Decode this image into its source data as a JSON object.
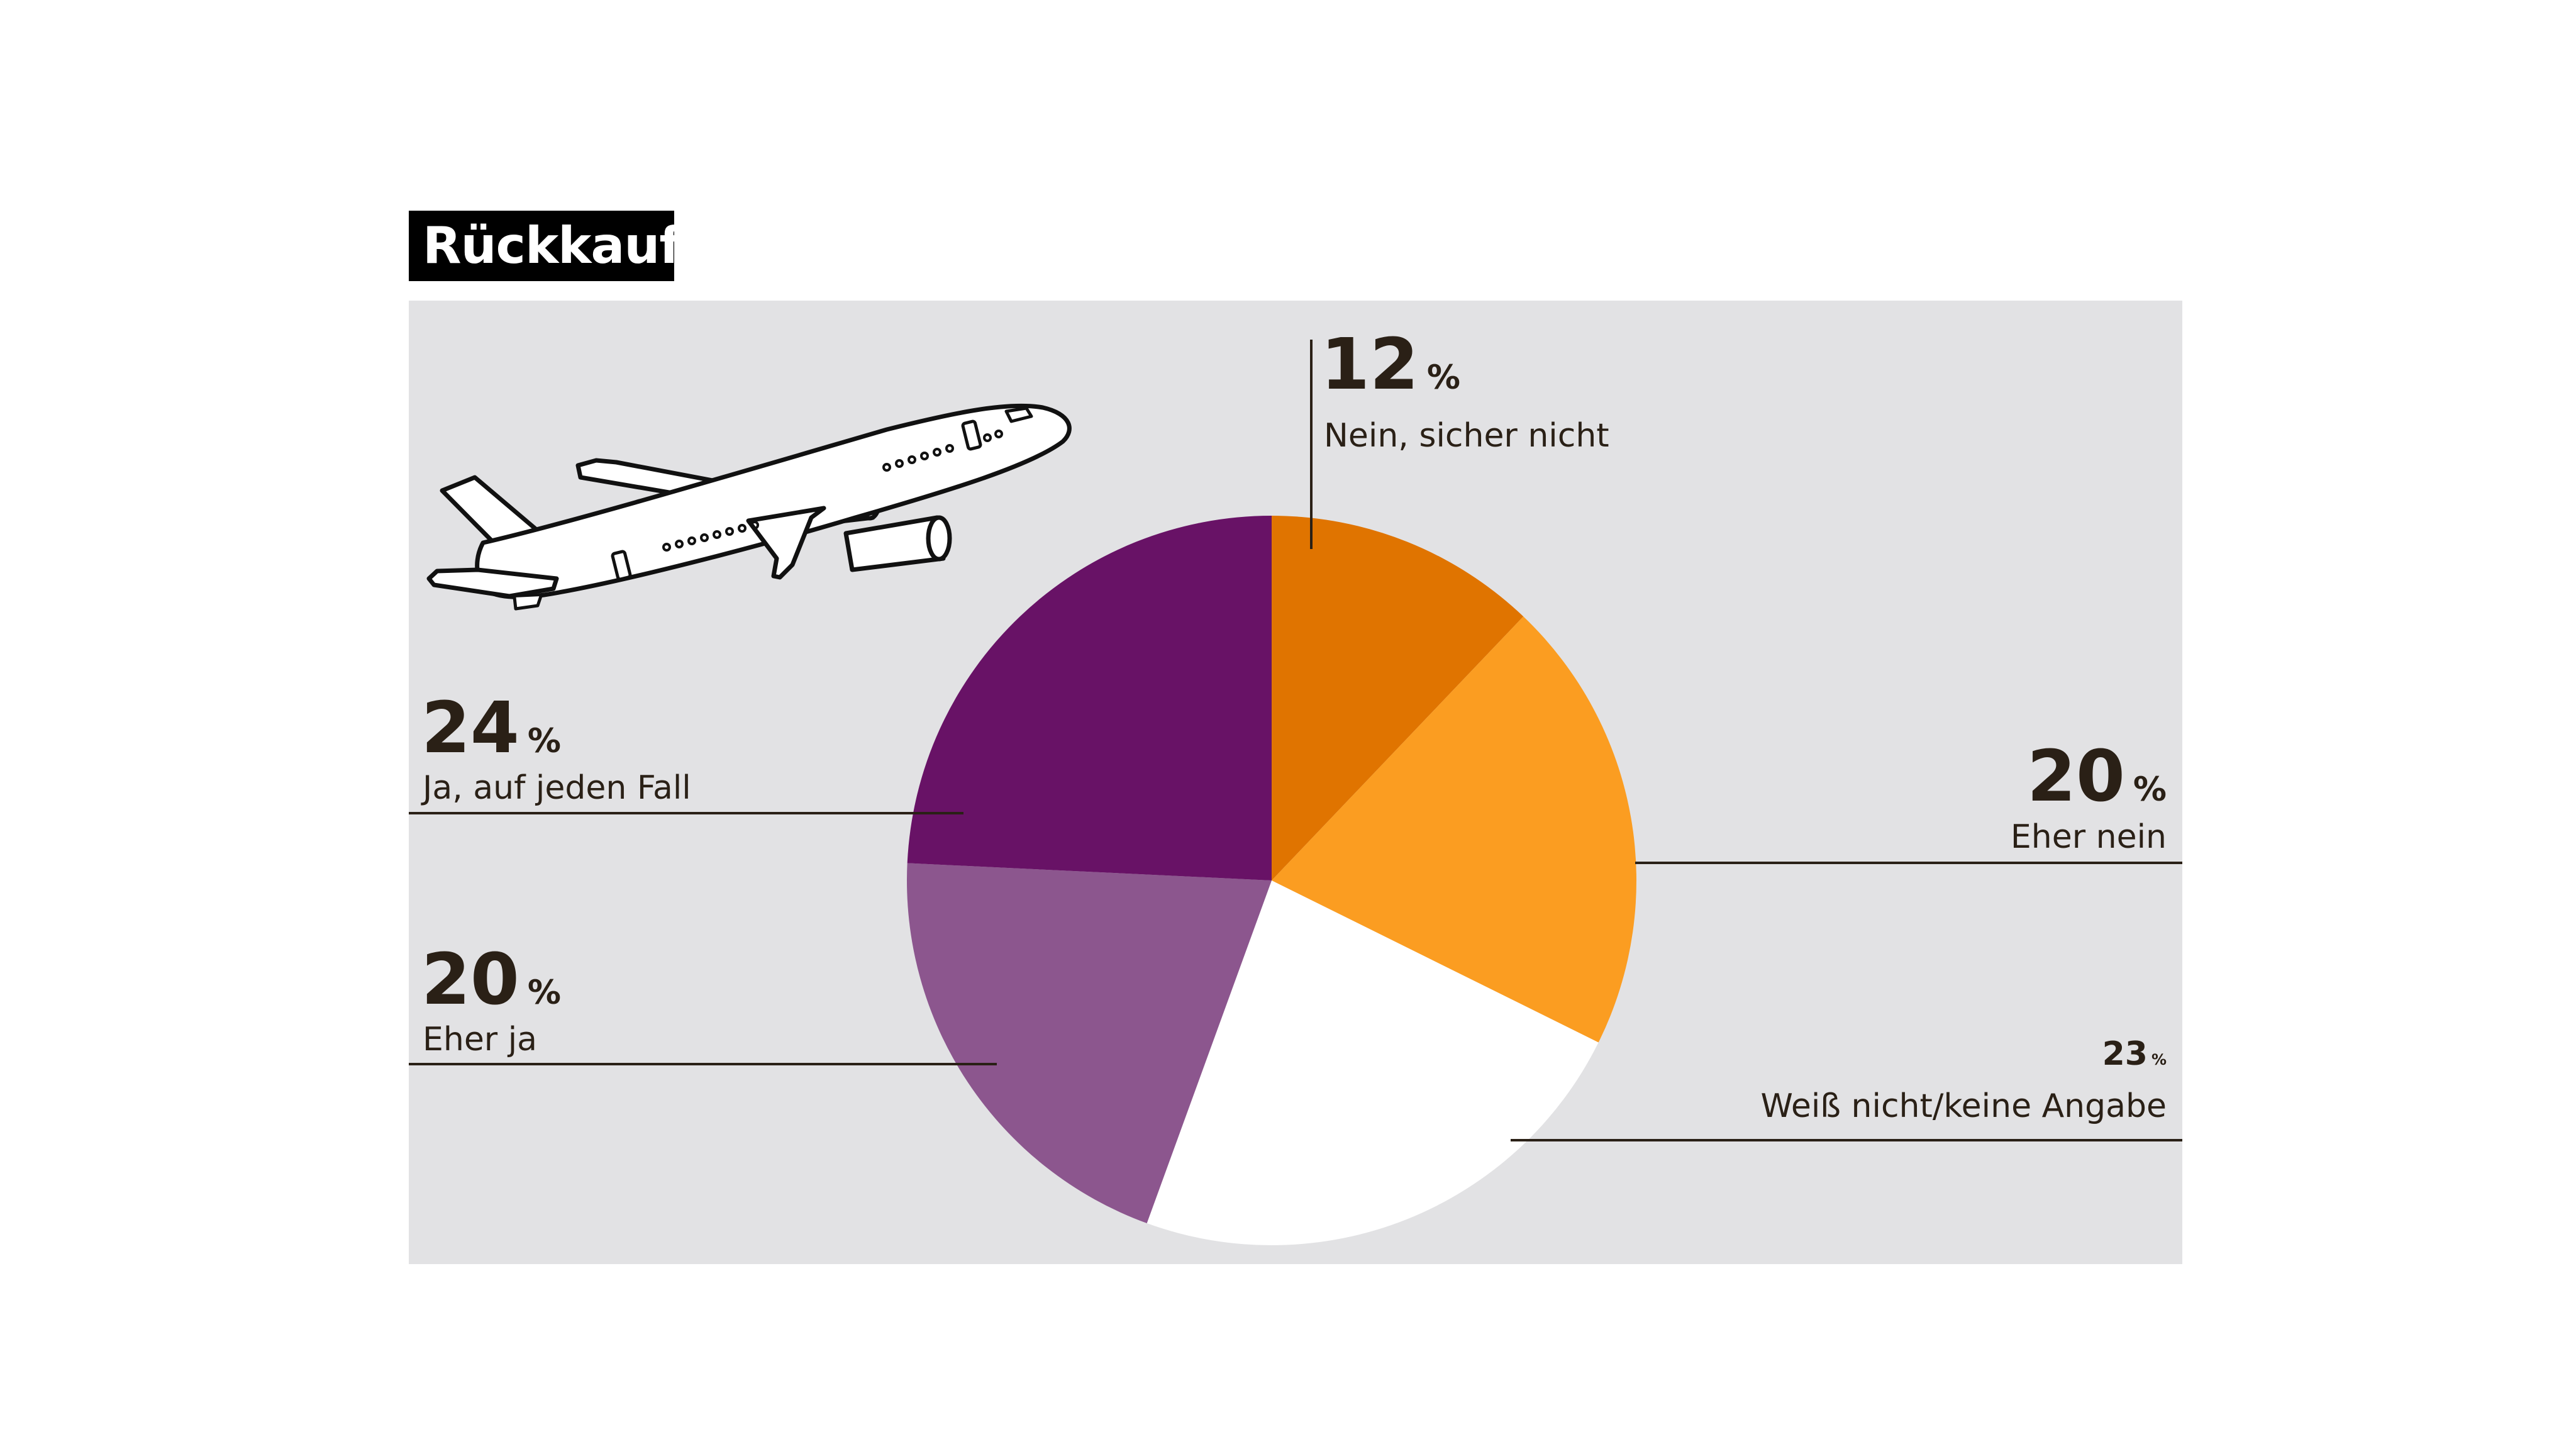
{
  "title": "Rückkauf",
  "icon": "airplane-icon",
  "chart_data": {
    "type": "pie",
    "title": "Rückkauf",
    "start": "12 o'clock",
    "direction": "clockwise",
    "slices": [
      {
        "label": "Nein, sicher nicht",
        "value": 12,
        "value_label": "12",
        "unit": "%",
        "color": "#e07400"
      },
      {
        "label": "Eher nein",
        "value": 20,
        "value_label": "20",
        "unit": "%",
        "color": "#fb9d21"
      },
      {
        "label": "Weiß nicht/keine Angabe",
        "value": 23,
        "value_label": "23",
        "unit": "%",
        "color": "#ffffff"
      },
      {
        "label": "Eher ja",
        "value": 20,
        "value_label": "20",
        "unit": "%",
        "color": "#8c568e"
      },
      {
        "label": "Ja, auf jeden Fall",
        "value": 24,
        "value_label": "24",
        "unit": "%",
        "color": "#681266"
      }
    ]
  },
  "colors": {
    "panel": "#e2e2e4",
    "text": "#2a2016",
    "title_bg": "#000000",
    "title_fg": "#ffffff"
  }
}
